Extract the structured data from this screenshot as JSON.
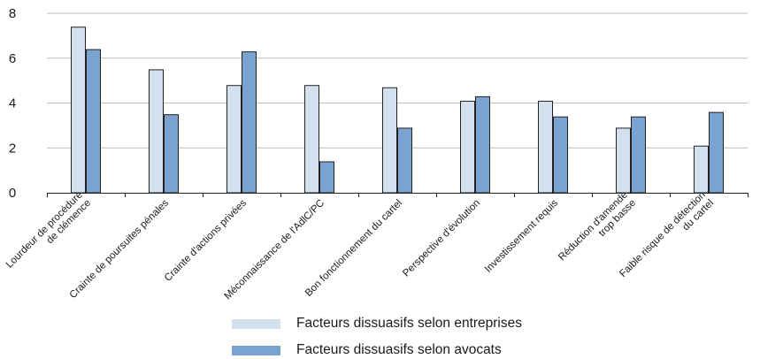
{
  "chart_data": {
    "type": "bar",
    "categories": [
      [
        "Lourdeur de procédure",
        "de clémence"
      ],
      [
        "Crainte de poursuites pénales"
      ],
      [
        "Crainte d'actions privées"
      ],
      [
        "Méconnaissance de l'AdlC/PC"
      ],
      [
        "Bon fonctionnement du cartel"
      ],
      [
        "Perspective d'évolution"
      ],
      [
        "Investissement requis"
      ],
      [
        "Réduction d'amende",
        "trop basse"
      ],
      [
        "Faible risque de détection",
        "du cartel"
      ]
    ],
    "series": [
      {
        "name": "Facteurs dissuasifs selon entreprises",
        "color": "#d3e0ee",
        "values": [
          7.4,
          5.5,
          4.8,
          4.8,
          4.7,
          4.1,
          4.1,
          2.9,
          2.1
        ]
      },
      {
        "name": "Facteurs dissuasifs selon avocats",
        "color": "#7aa3cf",
        "values": [
          6.4,
          3.5,
          6.3,
          1.4,
          2.9,
          4.3,
          3.4,
          3.4,
          3.6
        ]
      }
    ],
    "ylim": [
      0,
      8
    ],
    "yticks": [
      0,
      2,
      4,
      6,
      8
    ],
    "grid": true,
    "legend_position": "bottom"
  }
}
